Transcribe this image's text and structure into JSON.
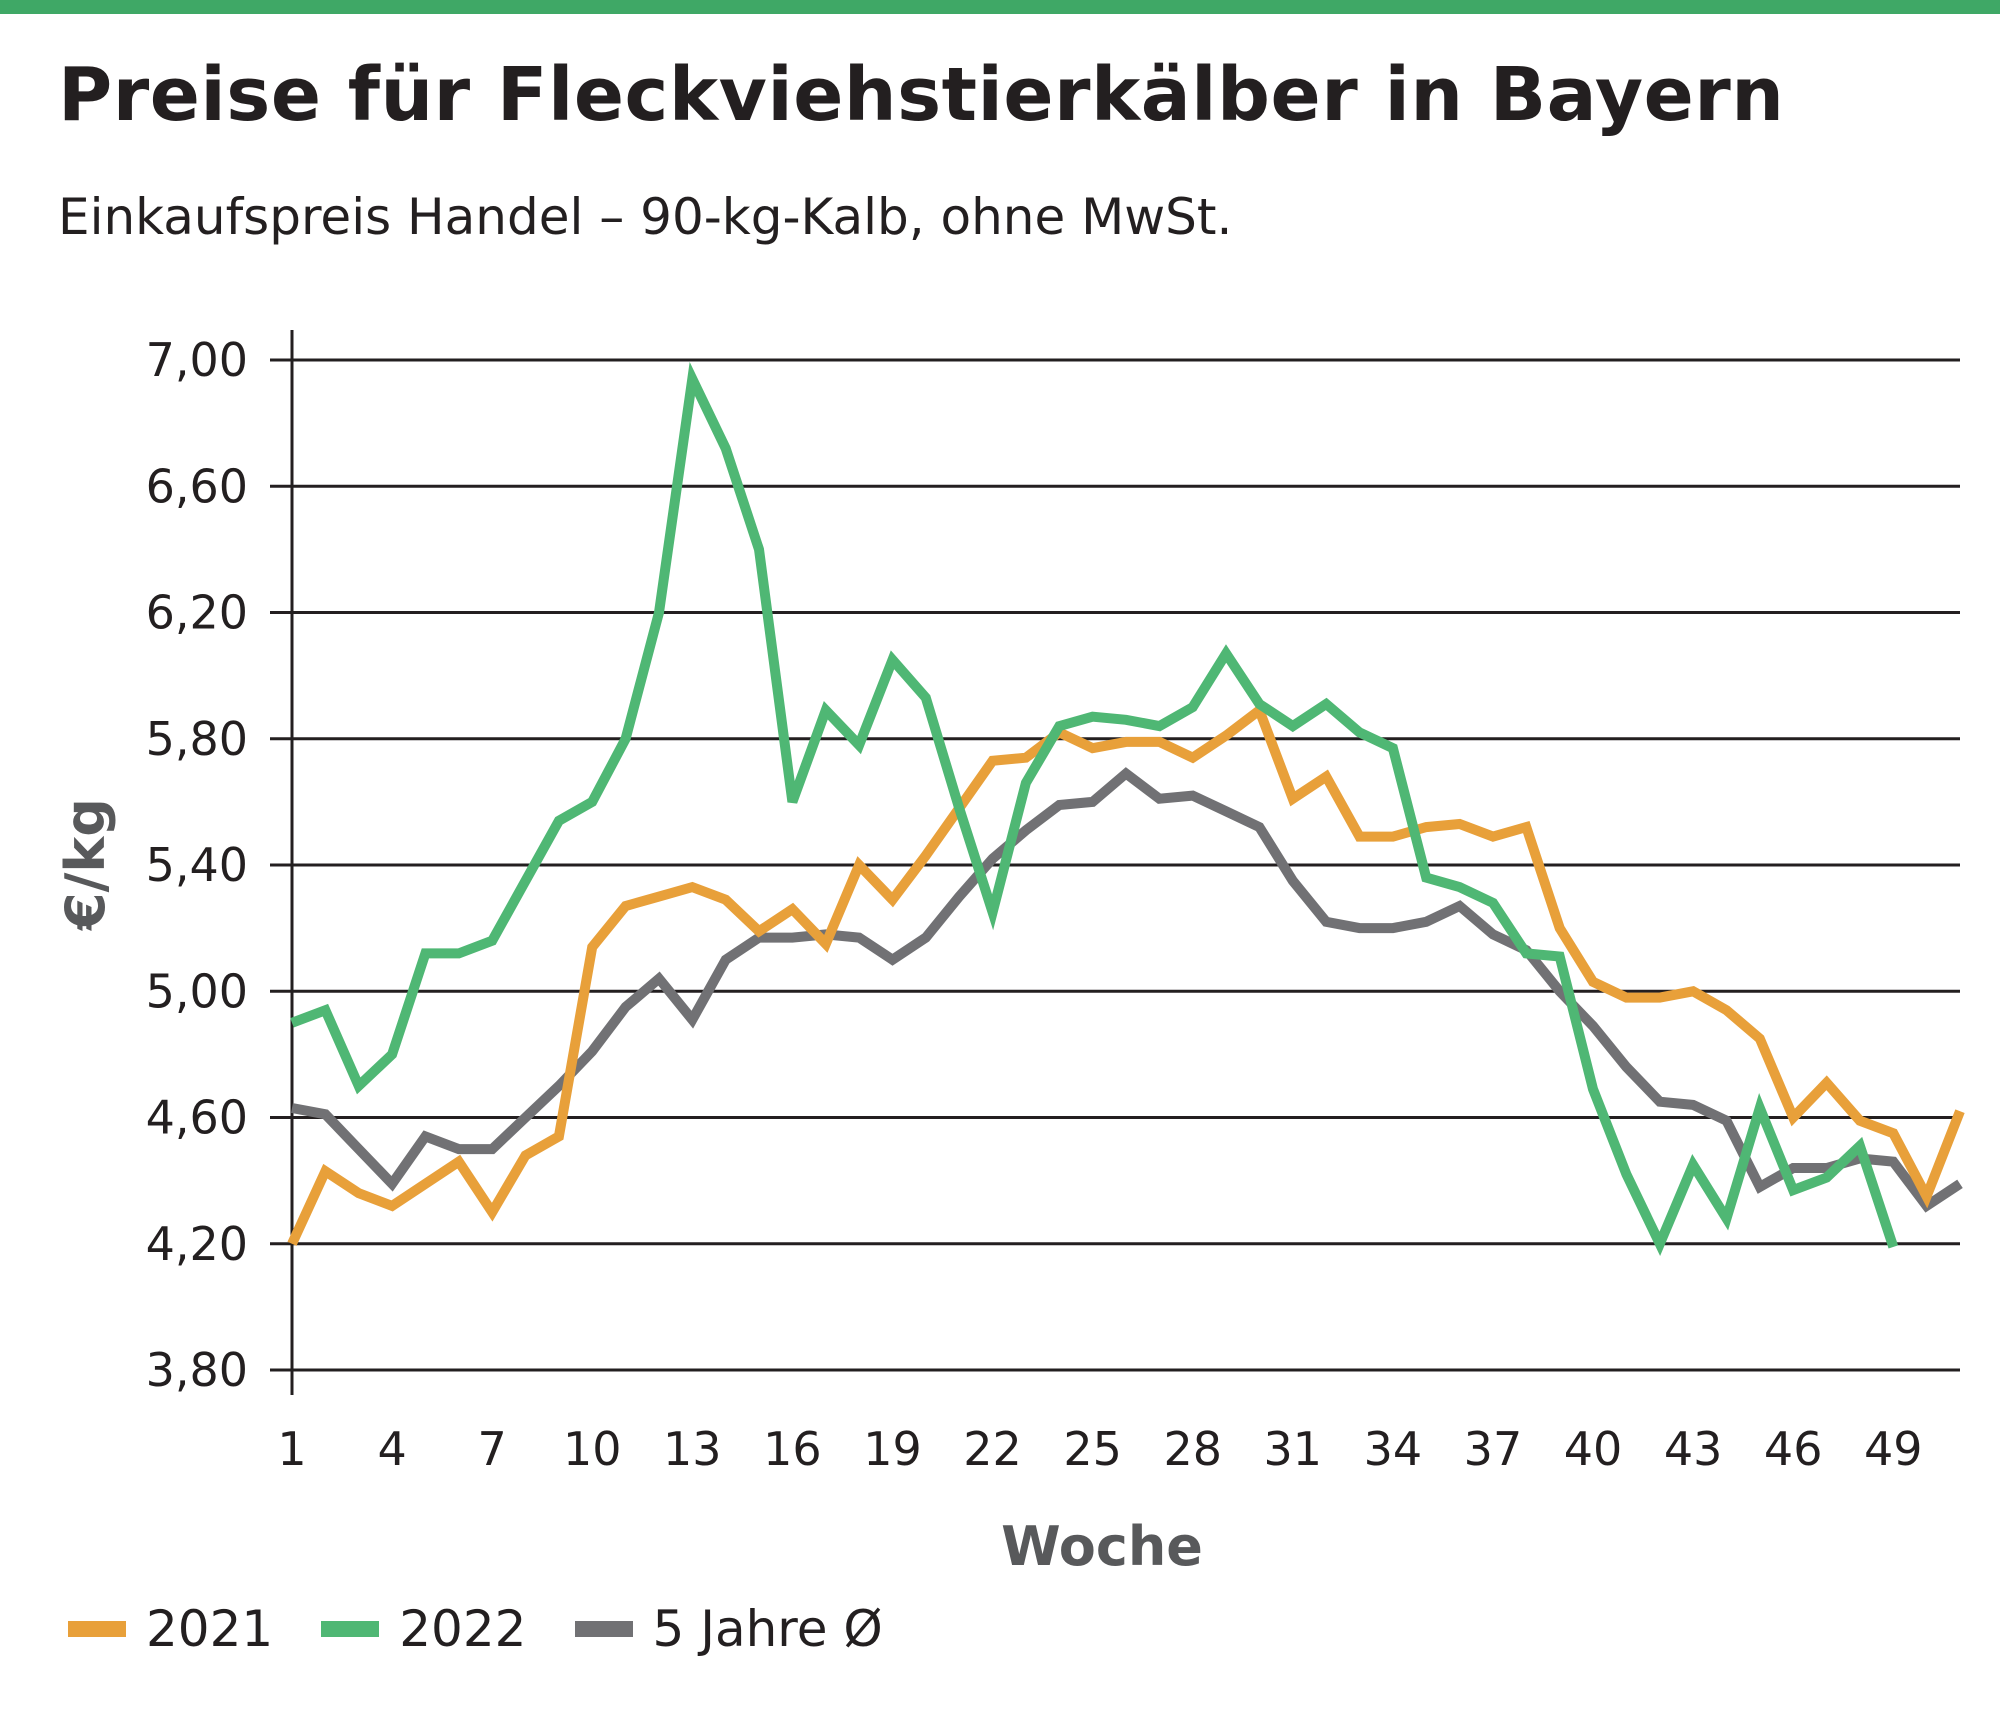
{
  "colors": {
    "accent_bar": "#3fa866",
    "grid": "#231f20",
    "text": "#231f20",
    "axis_label": "#58595b"
  },
  "chart_data": {
    "type": "line",
    "title": "Preise für Fleckviehstierkälber in Bayern",
    "subtitle": "Einkaufspreis Handel – 90-kg-Kalb, ohne MwSt.",
    "xlabel": "Woche",
    "ylabel": "€/kg",
    "ylim": [
      3.8,
      7.0
    ],
    "xlim": [
      1,
      51
    ],
    "grid": "horizontal",
    "legend_position": "bottom-left",
    "yticks": [
      "3,80",
      "4,20",
      "4,60",
      "5,00",
      "5,40",
      "5,80",
      "6,20",
      "6,60",
      "7,00"
    ],
    "ytick_values": [
      3.8,
      4.2,
      4.6,
      5.0,
      5.4,
      5.8,
      6.2,
      6.6,
      7.0
    ],
    "xticks": [
      "1",
      "4",
      "7",
      "10",
      "13",
      "16",
      "19",
      "22",
      "25",
      "28",
      "31",
      "34",
      "37",
      "40",
      "43",
      "46",
      "49"
    ],
    "xtick_values": [
      1,
      4,
      7,
      10,
      13,
      16,
      19,
      22,
      25,
      28,
      31,
      34,
      37,
      40,
      43,
      46,
      49
    ],
    "series": [
      {
        "name": "2021",
        "color": "#e8a03a",
        "x": [
          1,
          2,
          3,
          4,
          5,
          6,
          7,
          8,
          9,
          10,
          11,
          12,
          13,
          14,
          15,
          16,
          17,
          18,
          19,
          20,
          21,
          22,
          23,
          24,
          25,
          26,
          27,
          28,
          29,
          30,
          31,
          32,
          33,
          34,
          35,
          36,
          37,
          38,
          39,
          40,
          41,
          42,
          43,
          44,
          45,
          46,
          47,
          48,
          49,
          50,
          51
        ],
        "values": [
          4.2,
          4.43,
          4.36,
          4.32,
          4.39,
          4.46,
          4.3,
          4.48,
          4.54,
          5.14,
          5.27,
          5.3,
          5.33,
          5.29,
          5.19,
          5.26,
          5.15,
          5.4,
          5.29,
          5.43,
          5.58,
          5.73,
          5.74,
          5.82,
          5.77,
          5.79,
          5.79,
          5.74,
          5.81,
          5.89,
          5.61,
          5.68,
          5.49,
          5.49,
          5.52,
          5.53,
          5.49,
          5.52,
          5.2,
          5.03,
          4.98,
          4.98,
          5.0,
          4.94,
          4.85,
          4.6,
          4.71,
          4.59,
          4.55,
          4.35,
          4.62
        ]
      },
      {
        "name": "2022",
        "color": "#4fb774",
        "x": [
          1,
          2,
          3,
          4,
          5,
          6,
          7,
          8,
          9,
          10,
          11,
          12,
          13,
          14,
          15,
          16,
          17,
          18,
          19,
          20,
          21,
          22,
          23,
          24,
          25,
          26,
          27,
          28,
          29,
          30,
          31,
          32,
          33,
          34,
          35,
          36,
          37,
          38,
          39,
          40,
          41,
          42,
          43,
          44,
          45,
          46,
          47,
          48,
          49
        ],
        "values": [
          4.9,
          4.94,
          4.7,
          4.8,
          5.12,
          5.12,
          5.16,
          5.35,
          5.54,
          5.6,
          5.8,
          6.2,
          6.94,
          6.72,
          6.4,
          5.6,
          5.89,
          5.78,
          6.05,
          5.93,
          5.58,
          5.25,
          5.66,
          5.84,
          5.87,
          5.86,
          5.84,
          5.9,
          6.07,
          5.91,
          5.84,
          5.91,
          5.82,
          5.77,
          5.36,
          5.33,
          5.28,
          5.12,
          5.11,
          4.69,
          4.42,
          4.2,
          4.45,
          4.28,
          4.63,
          4.37,
          4.41,
          4.51,
          4.19
        ]
      },
      {
        "name": "5 Jahre Ø",
        "color": "#717174",
        "x": [
          1,
          2,
          3,
          4,
          5,
          6,
          7,
          8,
          9,
          10,
          11,
          12,
          13,
          14,
          15,
          16,
          17,
          18,
          19,
          20,
          21,
          22,
          23,
          24,
          25,
          26,
          27,
          28,
          29,
          30,
          31,
          32,
          33,
          34,
          35,
          36,
          37,
          38,
          39,
          40,
          41,
          42,
          43,
          44,
          45,
          46,
          47,
          48,
          49,
          50,
          51
        ],
        "values": [
          4.63,
          4.61,
          4.5,
          4.39,
          4.54,
          4.5,
          4.5,
          4.6,
          4.7,
          4.81,
          4.95,
          5.04,
          4.91,
          5.1,
          5.17,
          5.17,
          5.18,
          5.17,
          5.1,
          5.17,
          5.3,
          5.42,
          5.51,
          5.59,
          5.6,
          5.69,
          5.61,
          5.62,
          5.57,
          5.52,
          5.35,
          5.22,
          5.2,
          5.2,
          5.22,
          5.27,
          5.18,
          5.13,
          5.0,
          4.89,
          4.76,
          4.65,
          4.64,
          4.59,
          4.38,
          4.44,
          4.44,
          4.47,
          4.46,
          4.32,
          4.39
        ]
      }
    ]
  }
}
